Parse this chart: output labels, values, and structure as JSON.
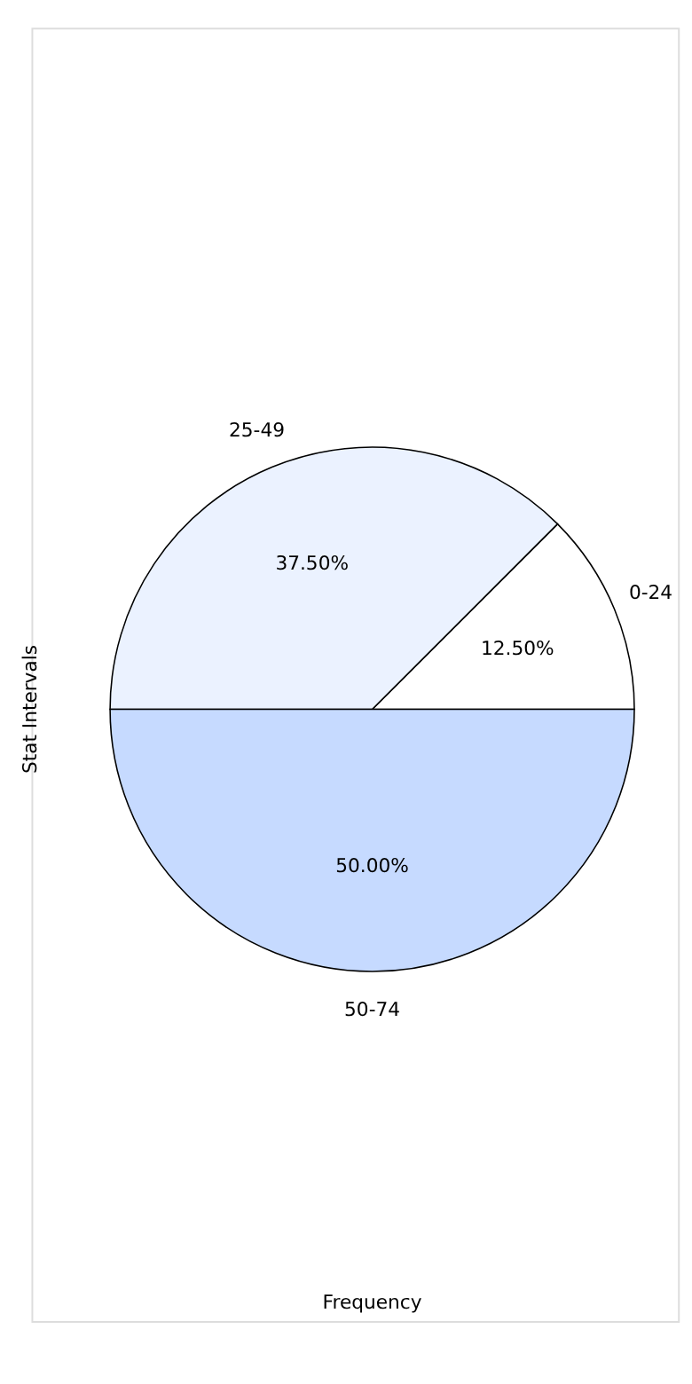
{
  "chart_data": {
    "type": "pie",
    "xlabel": "Frequency",
    "ylabel": "Stat Intervals",
    "categories": [
      "0-24",
      "25-49",
      "50-74"
    ],
    "values": [
      12.5,
      37.5,
      50
    ],
    "colors": [
      "#ffffff",
      "#ebf2ff",
      "#c6daff"
    ],
    "value_labels": [
      "12.50%",
      "37.50%",
      "50.00%"
    ],
    "legend": false
  }
}
